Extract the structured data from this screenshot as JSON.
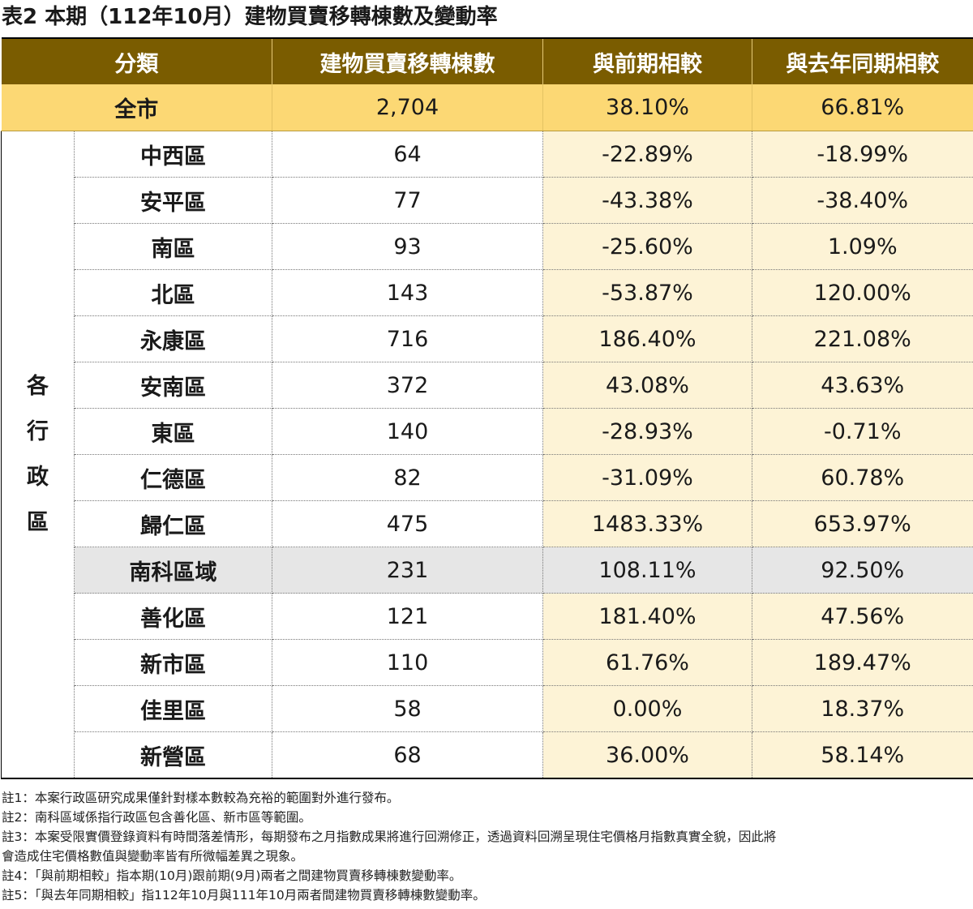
{
  "title": "表2 本期（112年10月）建物買賣移轉棟數及變動率",
  "headers": [
    "分類",
    "建物買賣移轉棟數",
    "與前期相較",
    "與去年同期相較"
  ],
  "city": {
    "name": "全市",
    "count": "2,704",
    "mom": "38.10%",
    "yoy": "66.81%"
  },
  "group_label": [
    "各",
    "行",
    "政",
    "區"
  ],
  "rows": [
    {
      "name": "中西區",
      "count": "64",
      "mom": "-22.89%",
      "yoy": "-18.99%"
    },
    {
      "name": "安平區",
      "count": "77",
      "mom": "-43.38%",
      "yoy": "-38.40%"
    },
    {
      "name": "南區",
      "count": "93",
      "mom": "-25.60%",
      "yoy": "1.09%"
    },
    {
      "name": "北區",
      "count": "143",
      "mom": "-53.87%",
      "yoy": "120.00%"
    },
    {
      "name": "永康區",
      "count": "716",
      "mom": "186.40%",
      "yoy": "221.08%"
    },
    {
      "name": "安南區",
      "count": "372",
      "mom": "43.08%",
      "yoy": "43.63%"
    },
    {
      "name": "東區",
      "count": "140",
      "mom": "-28.93%",
      "yoy": "-0.71%"
    },
    {
      "name": "仁德區",
      "count": "82",
      "mom": "-31.09%",
      "yoy": "60.78%"
    },
    {
      "name": "歸仁區",
      "count": "475",
      "mom": "1483.33%",
      "yoy": "653.97%"
    },
    {
      "name": "南科區域",
      "count": "231",
      "mom": "108.11%",
      "yoy": "92.50%"
    },
    {
      "name": "善化區",
      "count": "121",
      "mom": "181.40%",
      "yoy": "47.56%"
    },
    {
      "name": "新市區",
      "count": "110",
      "mom": "61.76%",
      "yoy": "189.47%"
    },
    {
      "name": "佳里區",
      "count": "58",
      "mom": "0.00%",
      "yoy": "18.37%"
    },
    {
      "name": "新營區",
      "count": "68",
      "mom": "36.00%",
      "yoy": "58.14%"
    }
  ],
  "notes": [
    "註1：本案行政區研究成果僅針對樣本數較為充裕的範圍對外進行發布。",
    "註2：南科區域係指行政區包含善化區、新市區等範圍。",
    "註3：本案受限實價登錄資料有時間落差情形，每期發布之月指數成果將進行回溯修正，透過資料回溯呈現住宅價格月指數真實全貌，因此將",
    "會造成住宅價格數值與變動率皆有所微幅差異之現象。",
    "註4：「與前期相較」指本期(10月)跟前期(9月)兩者之間建物買賣移轉棟數變動率。",
    "註5：「與去年同期相較」指112年10月與111年10月兩者間建物買賣移轉棟數變動率。"
  ]
}
